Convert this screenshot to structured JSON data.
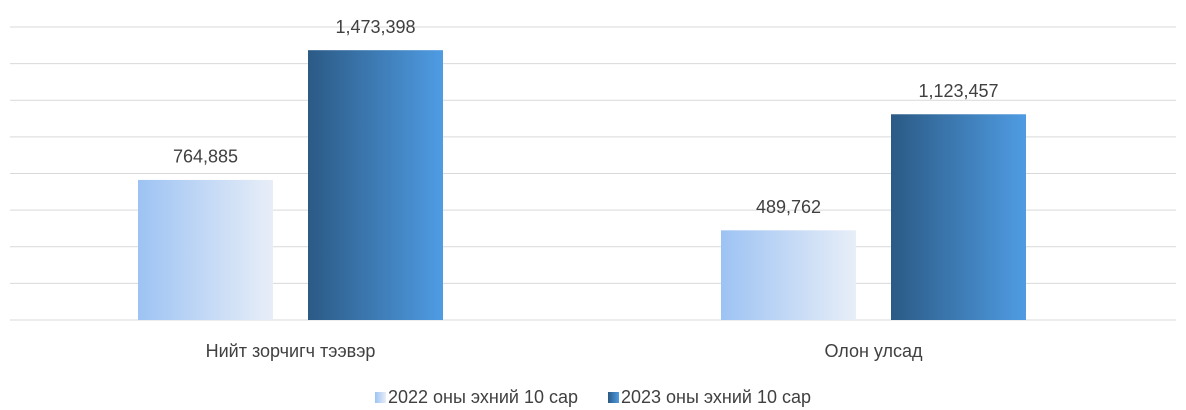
{
  "chart_data": {
    "type": "bar",
    "categories": [
      "Нийт зорчигч тээвэр",
      "Олон улсад"
    ],
    "series": [
      {
        "name": "2022 оны эхний 10 сар",
        "color": "#9dc3f3",
        "gradient_to": "#e8eef8",
        "values": [
          764885,
          489762
        ],
        "value_labels": [
          "764,885",
          "489,762"
        ]
      },
      {
        "name": "2023 оны эхний 10 сар",
        "color": "#2b5a85",
        "gradient_to": "#4f9ce3",
        "values": [
          1473398,
          1123457
        ],
        "value_labels": [
          "1,473,398",
          "1,123,457"
        ]
      }
    ],
    "ylim": [
      0,
      1600000
    ],
    "yticks": [
      0,
      200000,
      400000,
      600000,
      800000,
      1000000,
      1200000,
      1400000,
      1600000
    ],
    "grid": true,
    "legend": "bottom"
  }
}
